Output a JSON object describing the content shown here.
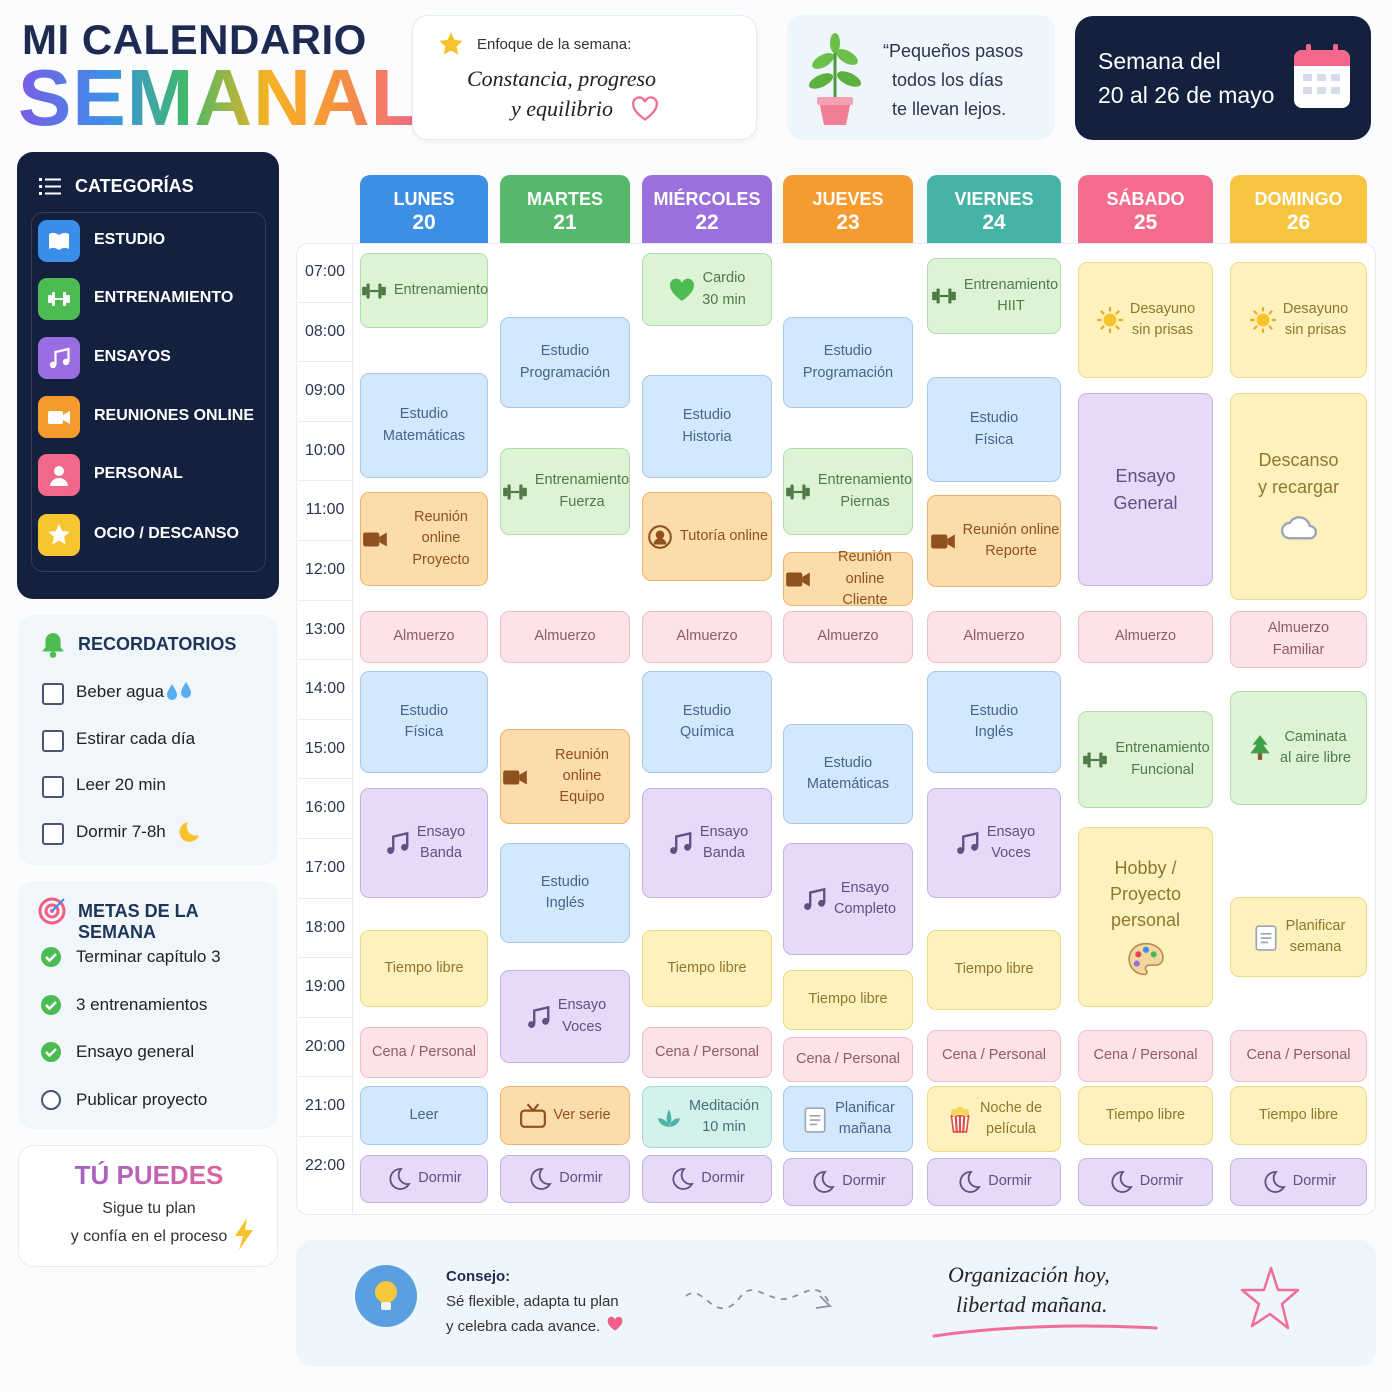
{
  "header": {
    "title": "MI CALENDARIO",
    "subtitle": "SEMANAL"
  },
  "focus": {
    "label": "Enfoque de la semana:",
    "lines": [
      "Constancia, progreso",
      "y equilibrio"
    ]
  },
  "quote": {
    "lines": [
      "“Pequeños pasos",
      "todos los días",
      "te llevan lejos."
    ]
  },
  "week": {
    "lines": [
      "Semana del",
      "20 al 26 de mayo"
    ]
  },
  "categories": {
    "title": "CATEGORÍAS",
    "items": [
      {
        "label": "ESTUDIO",
        "color": "#3b8ee8"
      },
      {
        "label": "ENTRENAMIENTO",
        "color": "#4cbb52"
      },
      {
        "label": "ENSAYOS",
        "color": "#9a6de0"
      },
      {
        "label": "REUNIONES ONLINE",
        "color": "#f59a2c"
      },
      {
        "label": "PERSONAL",
        "color": "#f0688a"
      },
      {
        "label": "OCIO / DESCANSO",
        "color": "#f7c531"
      }
    ]
  },
  "reminders": {
    "title": "RECORDATORIOS",
    "items": [
      "Beber agua",
      "Estirar cada día",
      "Leer 20 min",
      "Dormir 7-8h"
    ]
  },
  "goals": {
    "title": "METAS DE LA SEMANA",
    "items": [
      {
        "text": "Terminar capítulo 3",
        "done": true
      },
      {
        "text": "3 entrenamientos",
        "done": true
      },
      {
        "text": "Ensayo general",
        "done": true
      },
      {
        "text": "Publicar proyecto",
        "done": false
      }
    ]
  },
  "motivation": {
    "title": "TÚ PUEDES",
    "lines": [
      "Sigue tu plan",
      "y confía en el proceso"
    ]
  },
  "hours": [
    "07:00",
    "08:00",
    "09:00",
    "10:00",
    "11:00",
    "12:00",
    "13:00",
    "14:00",
    "15:00",
    "16:00",
    "17:00",
    "18:00",
    "19:00",
    "20:00",
    "21:00",
    "22:00"
  ],
  "days": [
    {
      "name": "LUNES",
      "number": 20,
      "color": "#3d8fe6",
      "events": [
        {
          "lines": [
            "Entrenamiento"
          ],
          "color": "#dcf3d6"
        },
        {
          "lines": [
            "Estudio",
            "Matemáticas"
          ],
          "color": "#d3e8fc"
        },
        {
          "lines": [
            "Reunión online",
            "Proyecto"
          ],
          "color": "#fddcab"
        },
        {
          "lines": [
            "Almuerzo"
          ],
          "color": "#fde2e8"
        },
        {
          "lines": [
            "Estudio",
            "Física"
          ],
          "color": "#d3e8fc"
        },
        {
          "lines": [
            "Ensayo",
            "Banda"
          ],
          "color": "#e6daf8"
        },
        {
          "lines": [
            "Tiempo libre"
          ],
          "color": "#fdf2bd"
        },
        {
          "lines": [
            "Cena / Personal"
          ],
          "color": "#fde2e8"
        },
        {
          "lines": [
            "Leer"
          ],
          "color": "#d3e8fc"
        },
        {
          "lines": [
            "Dormir"
          ],
          "color": "#e6daf8"
        }
      ]
    },
    {
      "name": "MARTES",
      "number": 21,
      "color": "#56b86a",
      "events": [
        {
          "lines": [
            "Estudio",
            "Programación"
          ],
          "color": "#d3e8fc"
        },
        {
          "lines": [
            "Entrenamiento",
            "Fuerza"
          ],
          "color": "#dcf3d6"
        },
        {
          "lines": [
            "Almuerzo"
          ],
          "color": "#fde2e8"
        },
        {
          "lines": [
            "Reunión online",
            "Equipo"
          ],
          "color": "#fddcab"
        },
        {
          "lines": [
            "Estudio",
            "Inglés"
          ],
          "color": "#d3e8fc"
        },
        {
          "lines": [
            "Ensayo",
            "Voces"
          ],
          "color": "#e6daf8"
        },
        {
          "lines": [
            "Ver serie"
          ],
          "color": "#fddcab"
        },
        {
          "lines": [
            "Dormir"
          ],
          "color": "#e6daf8"
        }
      ]
    },
    {
      "name": "MIÉRCOLES",
      "number": 22,
      "color": "#9b6fdc",
      "events": [
        {
          "lines": [
            "Cardio",
            "30 min"
          ],
          "color": "#dcf3d6"
        },
        {
          "lines": [
            "Estudio",
            "Historia"
          ],
          "color": "#d3e8fc"
        },
        {
          "lines": [
            "Tutoría online"
          ],
          "color": "#fddcab"
        },
        {
          "lines": [
            "Almuerzo"
          ],
          "color": "#fde2e8"
        },
        {
          "lines": [
            "Estudio",
            "Química"
          ],
          "color": "#d3e8fc"
        },
        {
          "lines": [
            "Ensayo",
            "Banda"
          ],
          "color": "#e6daf8"
        },
        {
          "lines": [
            "Tiempo libre"
          ],
          "color": "#fdf2bd"
        },
        {
          "lines": [
            "Cena / Personal"
          ],
          "color": "#fde2e8"
        },
        {
          "lines": [
            "Meditación",
            "10 min"
          ],
          "color": "#d3f0ec"
        },
        {
          "lines": [
            "Dormir"
          ],
          "color": "#e6daf8"
        }
      ]
    },
    {
      "name": "JUEVES",
      "number": 23,
      "color": "#f59b2f",
      "events": [
        {
          "lines": [
            "Estudio",
            "Programación"
          ],
          "color": "#d3e8fc"
        },
        {
          "lines": [
            "Entrenamiento",
            "Piernas"
          ],
          "color": "#dcf3d6"
        },
        {
          "lines": [
            "Reunión online",
            "Cliente"
          ],
          "color": "#fddcab"
        },
        {
          "lines": [
            "Almuerzo"
          ],
          "color": "#fde2e8"
        },
        {
          "lines": [
            "Estudio",
            "Matemáticas"
          ],
          "color": "#d3e8fc"
        },
        {
          "lines": [
            "Ensayo",
            "Completo"
          ],
          "color": "#e6daf8"
        },
        {
          "lines": [
            "Tiempo libre"
          ],
          "color": "#fdf2bd"
        },
        {
          "lines": [
            "Cena / Personal"
          ],
          "color": "#fde2e8"
        },
        {
          "lines": [
            "Planificar",
            "mañana"
          ],
          "color": "#d3e8fc"
        },
        {
          "lines": [
            "Dormir"
          ],
          "color": "#e6daf8"
        }
      ]
    },
    {
      "name": "VIERNES",
      "number": 24,
      "color": "#45b3a6",
      "events": [
        {
          "lines": [
            "Entrenamiento",
            "HIIT"
          ],
          "color": "#dcf3d6"
        },
        {
          "lines": [
            "Estudio",
            "Física"
          ],
          "color": "#d3e8fc"
        },
        {
          "lines": [
            "Reunión online",
            "Reporte"
          ],
          "color": "#fddcab"
        },
        {
          "lines": [
            "Almuerzo"
          ],
          "color": "#fde2e8"
        },
        {
          "lines": [
            "Estudio",
            "Inglés"
          ],
          "color": "#d3e8fc"
        },
        {
          "lines": [
            "Ensayo",
            "Voces"
          ],
          "color": "#e6daf8"
        },
        {
          "lines": [
            "Tiempo libre"
          ],
          "color": "#fdf2bd"
        },
        {
          "lines": [
            "Cena / Personal"
          ],
          "color": "#fde2e8"
        },
        {
          "lines": [
            "Noche de",
            "película"
          ],
          "color": "#fdf2bd"
        },
        {
          "lines": [
            "Dormir"
          ],
          "color": "#e6daf8"
        }
      ]
    },
    {
      "name": "SÁBADO",
      "number": 25,
      "color": "#f56d8c",
      "events": [
        {
          "lines": [
            "Desayuno",
            "sin prisas"
          ],
          "color": "#fdf2bd"
        },
        {
          "lines": [
            "Ensayo",
            "General"
          ],
          "color": "#e6daf8"
        },
        {
          "lines": [
            "Almuerzo"
          ],
          "color": "#fde2e8"
        },
        {
          "lines": [
            "Entrenamiento",
            "Funcional"
          ],
          "color": "#dcf3d6"
        },
        {
          "lines": [
            "Hobby /",
            "Proyecto",
            "personal"
          ],
          "color": "#fdf2bd"
        },
        {
          "lines": [
            "Cena / Personal"
          ],
          "color": "#fde2e8"
        },
        {
          "lines": [
            "Tiempo libre"
          ],
          "color": "#fdf2bd"
        },
        {
          "lines": [
            "Dormir"
          ],
          "color": "#e6daf8"
        }
      ]
    },
    {
      "name": "DOMINGO",
      "number": 26,
      "color": "#f7c540",
      "events": [
        {
          "lines": [
            "Desayuno",
            "sin prisas"
          ],
          "color": "#fdf2bd"
        },
        {
          "lines": [
            "Descanso",
            "y recargar"
          ],
          "color": "#fdf2bd"
        },
        {
          "lines": [
            "Almuerzo",
            "Familiar"
          ],
          "color": "#fde2e8"
        },
        {
          "lines": [
            "Caminata",
            "al aire libre"
          ],
          "color": "#dcf3d6"
        },
        {
          "lines": [
            "Planificar",
            "semana"
          ],
          "color": "#fdf2bd"
        },
        {
          "lines": [
            "Cena / Personal"
          ],
          "color": "#fde2e8"
        },
        {
          "lines": [
            "Tiempo libre"
          ],
          "color": "#fdf2bd"
        },
        {
          "lines": [
            "Dormir"
          ],
          "color": "#e6daf8"
        }
      ]
    }
  ],
  "tip": {
    "title": "Consejo:",
    "lines": [
      "Sé flexible, adapta tu plan",
      "y celebra cada avance."
    ]
  },
  "slogan": {
    "lines": [
      "Organización hoy,",
      "libertad mañana."
    ]
  }
}
